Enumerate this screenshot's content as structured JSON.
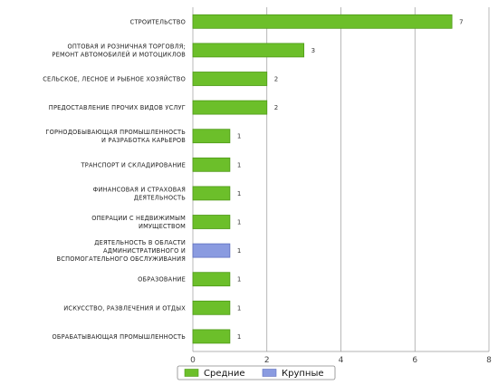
{
  "chart_data": {
    "type": "bar",
    "orientation": "horizontal",
    "categories": [
      "СТРОИТЕЛЬСТВО",
      "ОПТОВАЯ И РОЗНИЧНАЯ ТОРГОВЛЯ; РЕМОНТ АВТОМОБИЛЕЙ И МОТОЦИКЛОВ",
      "СЕЛЬСКОЕ, ЛЕСНОЕ И РЫБНОЕ ХОЗЯЙСТВО",
      "ПРЕДОСТАВЛЕНИЕ ПРОЧИХ ВИДОВ УСЛУГ",
      "ГОРНОДОБЫВАЮЩАЯ ПРОМЫШЛЕННОСТЬ И РАЗРАБОТКА КАРЬЕРОВ",
      "ТРАНСПОРТ И СКЛАДИРОВАНИЕ",
      "ФИНАНСОВАЯ И СТРАХОВАЯ ДЕЯТЕЛЬНОСТЬ",
      "ОПЕРАЦИИ С НЕДВИЖИМЫМ ИМУЩЕСТВОМ",
      "ДЕЯТЕЛЬНОСТЬ В ОБЛАСТИ АДМИНИСТРАТИВНОГО И ВСПОМОГАТЕЛЬНОГО ОБСЛУЖИВАНИЯ",
      "ОБРАЗОВАНИЕ",
      "ИСКУССТВО, РАЗВЛЕЧЕНИЯ И ОТДЫХ",
      "ОБРАБАТЫВАЮЩАЯ ПРОМЫШЛЕННОСТЬ"
    ],
    "category_lines": [
      [
        "СТРОИТЕЛЬСТВО"
      ],
      [
        "ОПТОВАЯ И РОЗНИЧНАЯ ТОРГОВЛЯ;",
        "РЕМОНТ АВТОМОБИЛЕЙ И МОТОЦИКЛОВ"
      ],
      [
        "СЕЛЬСКОЕ, ЛЕСНОЕ И РЫБНОЕ ХОЗЯЙСТВО"
      ],
      [
        "ПРЕДОСТАВЛЕНИЕ ПРОЧИХ ВИДОВ УСЛУГ"
      ],
      [
        "ГОРНОДОБЫВАЮЩАЯ ПРОМЫШЛЕННОСТЬ",
        "И РАЗРАБОТКА КАРЬЕРОВ"
      ],
      [
        "ТРАНСПОРТ И СКЛАДИРОВАНИЕ"
      ],
      [
        "ФИНАНСОВАЯ И СТРАХОВАЯ",
        "ДЕЯТЕЛЬНОСТЬ"
      ],
      [
        "ОПЕРАЦИИ С НЕДВИЖИМЫМ",
        "ИМУЩЕСТВОМ"
      ],
      [
        "ДЕЯТЕЛЬНОСТЬ В ОБЛАСТИ",
        "АДМИНИСТРАТИВНОГО И",
        "ВСПОМОГАТЕЛЬНОГО ОБСЛУЖИВАНИЯ"
      ],
      [
        "ОБРАЗОВАНИЕ"
      ],
      [
        "ИСКУССТВО, РАЗВЛЕЧЕНИЯ И ОТДЫХ"
      ],
      [
        "ОБРАБАТЫВАЮЩАЯ ПРОМЫШЛЕННОСТЬ"
      ]
    ],
    "values": [
      7,
      3,
      2,
      2,
      1,
      1,
      1,
      1,
      1,
      1,
      1,
      1
    ],
    "bar_series": [
      "Средние",
      "Средние",
      "Средние",
      "Средние",
      "Средние",
      "Средние",
      "Средние",
      "Средние",
      "Крупные",
      "Средние",
      "Средние",
      "Средние"
    ],
    "series": [
      {
        "name": "Средние",
        "color": "#6cbf2a",
        "stroke": "#4e9a17"
      },
      {
        "name": "Крупные",
        "color": "#8a9be0",
        "stroke": "#5f6fbf"
      }
    ],
    "x_ticks": [
      0,
      2,
      4,
      6,
      8
    ],
    "xlim": [
      0,
      8
    ],
    "grid": true,
    "legend_position": "bottom"
  }
}
